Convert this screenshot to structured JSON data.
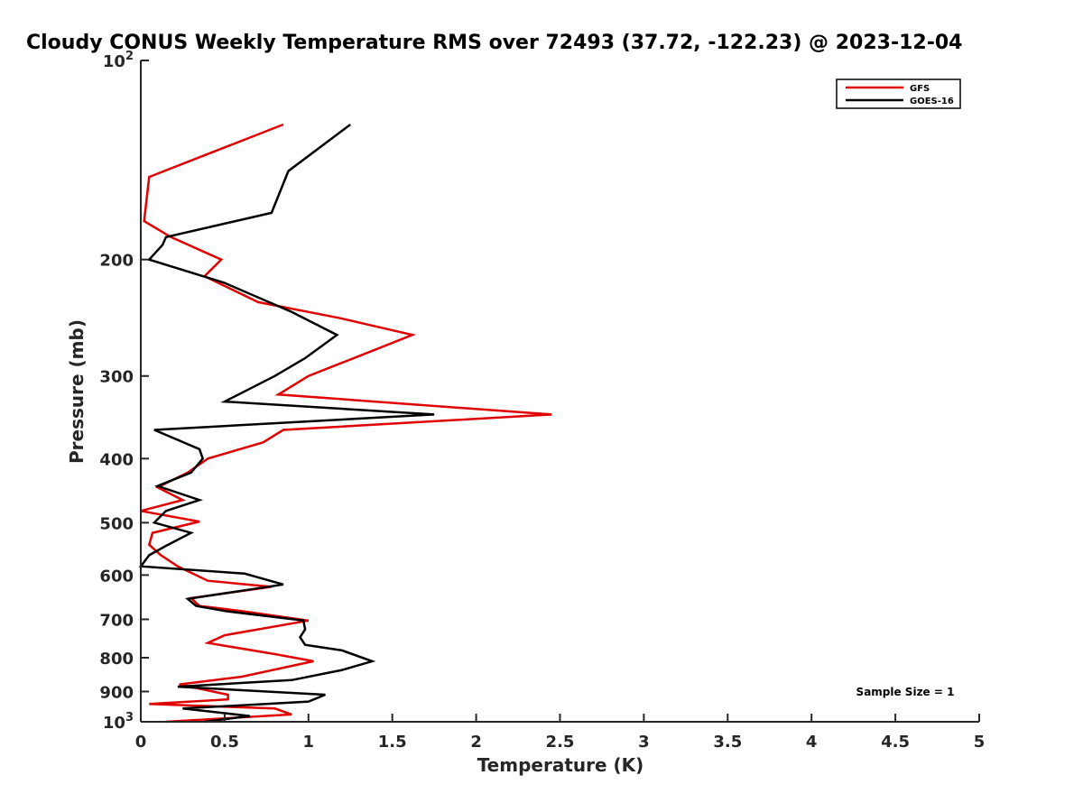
{
  "chart_data": {
    "type": "line",
    "title": "Cloudy CONUS Weekly Temperature RMS over 72493 (37.72, -122.23) @ 2023-12-04",
    "xlabel": "Temperature (K)",
    "ylabel": "Pressure (mb)",
    "xlim": [
      0,
      5
    ],
    "ylim": [
      1000,
      100
    ],
    "y_scale": "log",
    "y_reversed": true,
    "x_ticks": [
      0,
      0.5,
      1,
      1.5,
      2,
      2.5,
      3,
      3.5,
      4,
      4.5,
      5
    ],
    "x_tick_labels": [
      "0",
      "0.5",
      "1",
      "1.5",
      "2",
      "2.5",
      "3",
      "3.5",
      "4",
      "4.5",
      "5"
    ],
    "y_ticks": [
      100,
      200,
      300,
      400,
      500,
      600,
      700,
      800,
      900,
      1000
    ],
    "y_tick_labels": [
      {
        "base": "10",
        "exp": "2"
      },
      {
        "text": "200"
      },
      {
        "text": "300"
      },
      {
        "text": "400"
      },
      {
        "text": "500"
      },
      {
        "text": "600"
      },
      {
        "text": "700"
      },
      {
        "text": "800"
      },
      {
        "text": "900"
      },
      {
        "base": "10",
        "exp": "3"
      }
    ],
    "grid": false,
    "legend_position": "top-right",
    "annotation": "Sample Size = 1",
    "series": [
      {
        "name": "GFS",
        "color": "#e00000",
        "points": [
          [
            0.85,
            125
          ],
          [
            0.05,
            150
          ],
          [
            0.02,
            175
          ],
          [
            0.18,
            185
          ],
          [
            0.48,
            200
          ],
          [
            0.38,
            212
          ],
          [
            0.7,
            232
          ],
          [
            1.18,
            245
          ],
          [
            1.62,
            260
          ],
          [
            1.3,
            280
          ],
          [
            1.0,
            300
          ],
          [
            0.82,
            320
          ],
          [
            2.45,
            343
          ],
          [
            0.85,
            362
          ],
          [
            0.73,
            378
          ],
          [
            0.4,
            400
          ],
          [
            0.28,
            420
          ],
          [
            0.1,
            442
          ],
          [
            0.25,
            462
          ],
          [
            0.0,
            480
          ],
          [
            0.35,
            498
          ],
          [
            0.07,
            518
          ],
          [
            0.05,
            540
          ],
          [
            0.12,
            560
          ],
          [
            0.22,
            582
          ],
          [
            0.4,
            612
          ],
          [
            0.78,
            625
          ],
          [
            0.3,
            650
          ],
          [
            0.35,
            668
          ],
          [
            0.6,
            680
          ],
          [
            1.0,
            703
          ],
          [
            0.5,
            740
          ],
          [
            0.4,
            760
          ],
          [
            0.8,
            790
          ],
          [
            1.03,
            810
          ],
          [
            0.6,
            855
          ],
          [
            0.23,
            878
          ],
          [
            0.52,
            910
          ],
          [
            0.52,
            925
          ],
          [
            0.05,
            940
          ],
          [
            0.8,
            955
          ],
          [
            0.9,
            975
          ],
          [
            0.15,
            1000
          ]
        ]
      },
      {
        "name": "GOES-16",
        "color": "#000000",
        "points": [
          [
            1.25,
            125
          ],
          [
            0.88,
            147
          ],
          [
            0.78,
            170
          ],
          [
            0.15,
            185
          ],
          [
            0.13,
            190
          ],
          [
            0.05,
            200
          ],
          [
            0.5,
            217
          ],
          [
            0.9,
            240
          ],
          [
            1.17,
            260
          ],
          [
            0.98,
            282
          ],
          [
            0.8,
            300
          ],
          [
            0.5,
            328
          ],
          [
            1.75,
            343
          ],
          [
            0.08,
            362
          ],
          [
            0.35,
            387
          ],
          [
            0.37,
            400
          ],
          [
            0.3,
            420
          ],
          [
            0.1,
            440
          ],
          [
            0.35,
            462
          ],
          [
            0.15,
            480
          ],
          [
            0.08,
            500
          ],
          [
            0.3,
            518
          ],
          [
            0.15,
            542
          ],
          [
            0.05,
            560
          ],
          [
            0.0,
            582
          ],
          [
            0.62,
            597
          ],
          [
            0.85,
            620
          ],
          [
            0.28,
            652
          ],
          [
            0.33,
            668
          ],
          [
            0.5,
            680
          ],
          [
            0.97,
            703
          ],
          [
            0.98,
            725
          ],
          [
            0.95,
            745
          ],
          [
            0.98,
            765
          ],
          [
            1.2,
            780
          ],
          [
            1.38,
            810
          ],
          [
            1.2,
            835
          ],
          [
            0.9,
            865
          ],
          [
            0.22,
            885
          ],
          [
            1.1,
            910
          ],
          [
            1.0,
            932
          ],
          [
            0.25,
            955
          ],
          [
            0.65,
            980
          ],
          [
            0.38,
            1000
          ]
        ]
      }
    ]
  }
}
